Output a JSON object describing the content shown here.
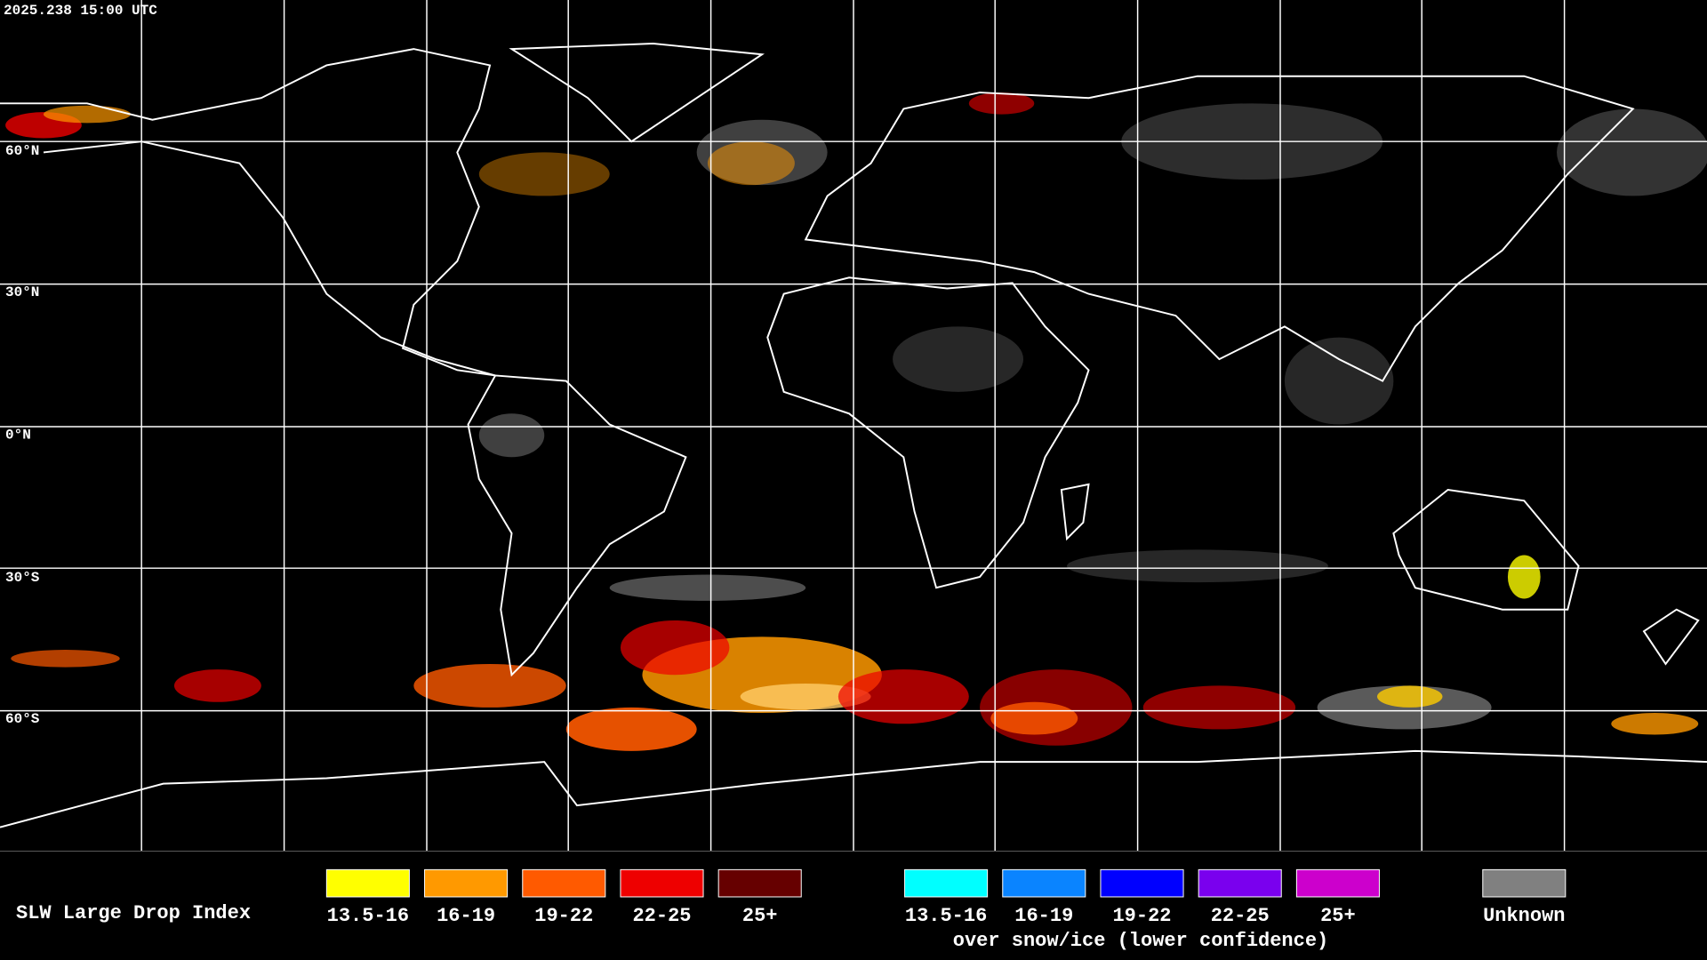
{
  "header": {
    "timestamp": "2025.238 15:00 UTC"
  },
  "latitude_labels": [
    "60°N",
    "30°N",
    "0°N",
    "30°S",
    "60°S"
  ],
  "legend": {
    "title": "SLW Large Drop Index",
    "liquid": [
      {
        "label": "13.5-16",
        "color": "#ffff00"
      },
      {
        "label": "16-19",
        "color": "#ff9900"
      },
      {
        "label": "19-22",
        "color": "#ff5a00"
      },
      {
        "label": "22-25",
        "color": "#ee0000"
      },
      {
        "label": "25+",
        "color": "#660000"
      }
    ],
    "snow_ice": [
      {
        "label": "13.5-16",
        "color": "#00ffff"
      },
      {
        "label": "16-19",
        "color": "#0a84ff"
      },
      {
        "label": "19-22",
        "color": "#0000ff"
      },
      {
        "label": "22-25",
        "color": "#7a00ee"
      },
      {
        "label": "25+",
        "color": "#cc00cc"
      }
    ],
    "snow_ice_note": "over snow/ice (lower confidence)",
    "unknown": {
      "label": "Unknown",
      "color": "#808080"
    }
  }
}
